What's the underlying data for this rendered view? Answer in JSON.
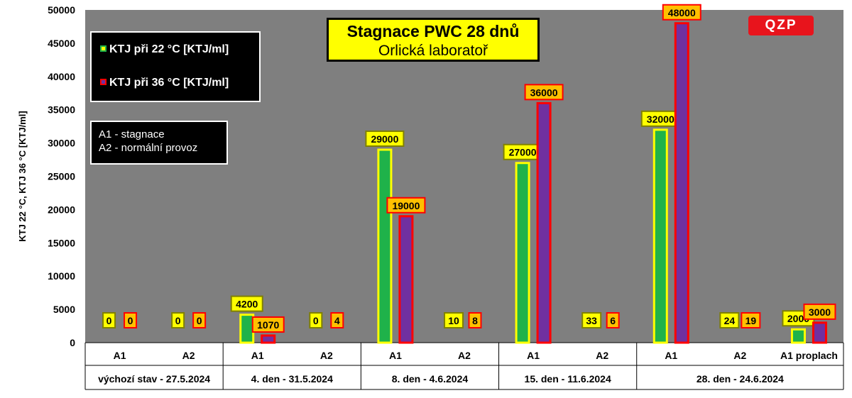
{
  "chart_data": {
    "type": "bar",
    "title": "Stagnace PWC 28 dnů",
    "subtitle": "Orlická laboratoř",
    "ylabel": "KTJ 22 °C, KTJ 36 °C  [KTJ/ml]",
    "ylim": [
      0,
      50000
    ],
    "yticks": [
      "0",
      "5000",
      "10000",
      "15000",
      "20000",
      "25000",
      "30000",
      "35000",
      "40000",
      "45000",
      "50000"
    ],
    "grid": false,
    "categories": [
      "A1",
      "A2",
      "A1",
      "A2",
      "A1",
      "A2",
      "A1",
      "A2",
      "A1",
      "A2",
      "A1  proplach"
    ],
    "groups": [
      {
        "label": "výchozí stav - 27.5.2024",
        "count": 2
      },
      {
        "label": "4. den - 31.5.2024",
        "count": 2
      },
      {
        "label": "8. den - 4.6.2024",
        "count": 2
      },
      {
        "label": "15. den - 11.6.2024",
        "count": 2
      },
      {
        "label": "28. den - 24.6.2024",
        "count": 3
      }
    ],
    "series": [
      {
        "name": "KTJ při 22 °C [KTJ/ml]",
        "fill": "#1fb24a",
        "edge": "#ffff00",
        "values": [
          0,
          0,
          4200,
          0,
          29000,
          10,
          27000,
          33,
          32000,
          24,
          2000
        ],
        "labels": [
          "0",
          "0",
          "4200",
          "0",
          "29000",
          "10",
          "27000",
          "33",
          "32000",
          "24",
          "2000"
        ]
      },
      {
        "name": "KTJ při 36 °C [KTJ/ml]",
        "fill": "#7030a0",
        "edge": "#ff0000",
        "values": [
          0,
          0,
          1070,
          4,
          19000,
          8,
          36000,
          6,
          48000,
          19,
          3000
        ],
        "labels": [
          "0",
          "0",
          "1070",
          "4",
          "19000",
          "8",
          "36000",
          "6",
          "48000",
          "19",
          "3000"
        ]
      }
    ],
    "legend": [
      {
        "label": "KTJ při 22 °C [KTJ/ml]",
        "swatch_fill": "#ffff00",
        "swatch_edge": "#1fb24a"
      },
      {
        "label": "KTJ při 36 °C [KTJ/ml]",
        "swatch_fill": "#7030a0",
        "swatch_edge": "#ff0000"
      }
    ],
    "notes": [
      "A1 - stagnace",
      "A2 - normální provoz"
    ],
    "logo_text": "QZP",
    "colors": {
      "plot_bg": "#7f7f7f",
      "label_bg_22": "#ffff00",
      "label_bg_36": "#ffc000",
      "label_border_22": "#808000",
      "label_border_36": "#ff0000"
    }
  }
}
